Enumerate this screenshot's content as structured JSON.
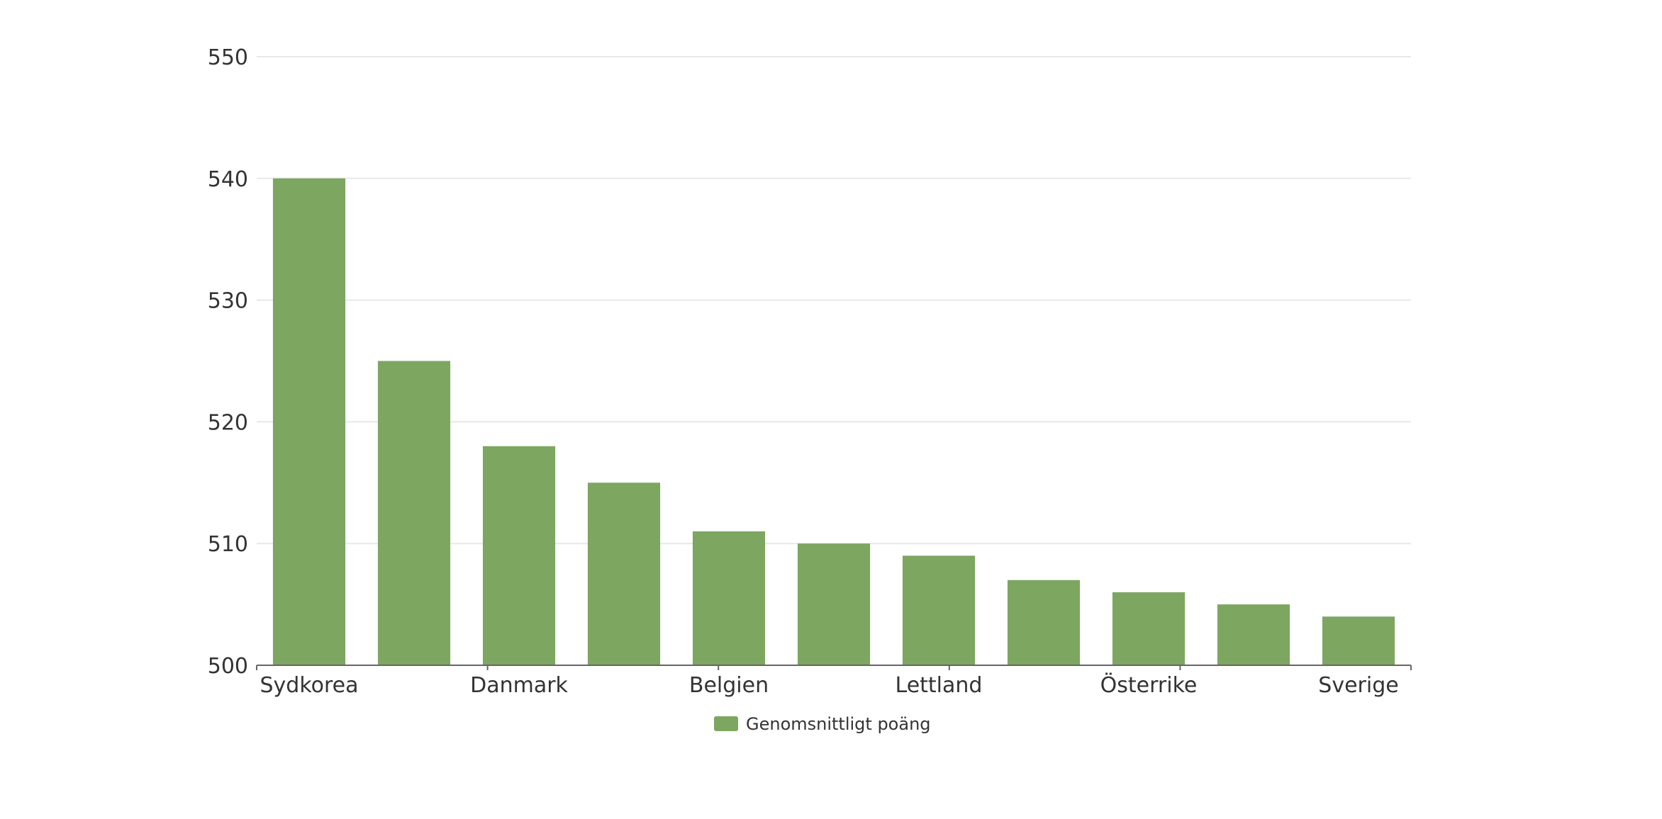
{
  "chart_data": {
    "type": "bar",
    "categories": [
      "Sydkorea",
      "",
      "Danmark",
      "",
      "Belgien",
      "",
      "Lettland",
      "",
      "Österrike",
      "",
      "Sverige"
    ],
    "series": [
      {
        "name": "Genomsnittligt poäng",
        "values": [
          540,
          525,
          518,
          515,
          511,
          510,
          509,
          507,
          506,
          505,
          504
        ],
        "color": "#7da660"
      }
    ],
    "ylim": [
      500,
      550
    ],
    "yticks": [
      500,
      510,
      520,
      530,
      540,
      550
    ],
    "grid": true,
    "legend": "bottom-center"
  },
  "legend": {
    "label": "Genomsnittligt poäng"
  }
}
